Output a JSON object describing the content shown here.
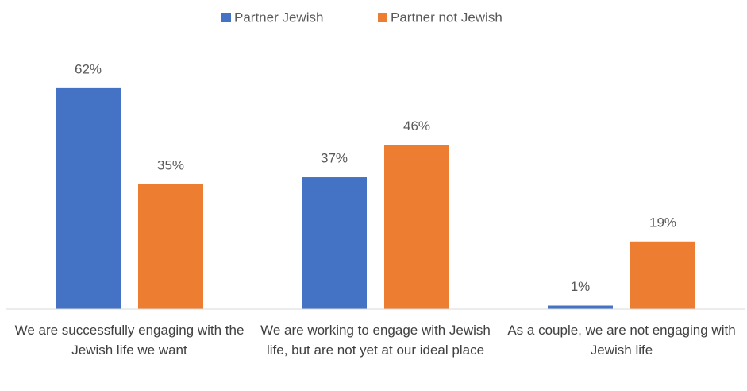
{
  "chart_data": {
    "type": "bar",
    "categories": [
      "We are successfully engaging with the Jewish life we want",
      "We are working to engage with Jewish life, but are not yet at our ideal place",
      "As a couple, we are not engaging with Jewish life"
    ],
    "series": [
      {
        "name": "Partner Jewish",
        "color": "#4472c4",
        "values": [
          62,
          37,
          1
        ],
        "value_labels": [
          "62%",
          "37%",
          "1%"
        ]
      },
      {
        "name": "Partner not Jewish",
        "color": "#ed7d31",
        "values": [
          35,
          46,
          19
        ],
        "value_labels": [
          "35%",
          "46%",
          "19%"
        ]
      }
    ],
    "ylim": [
      0,
      70
    ],
    "legend": "top"
  }
}
